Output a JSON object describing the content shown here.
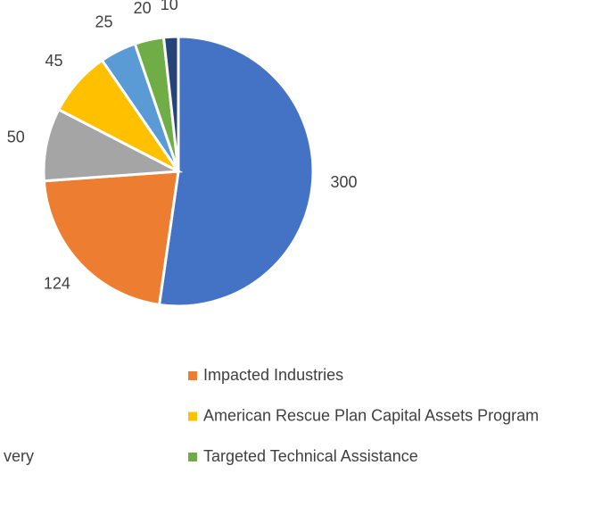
{
  "chart_data": {
    "type": "pie",
    "categories": [
      null,
      "Impacted Industries",
      null,
      "American Rescue Plan Capital Assets Program",
      "very",
      "Targeted Technical Assistance",
      null
    ],
    "values": [
      300,
      124,
      50,
      45,
      25,
      20,
      10
    ],
    "colors": [
      "#4472c4",
      "#ed7d31",
      "#a5a5a5",
      "#ffc000",
      "#5b9bd5",
      "#70ad47",
      "#264478"
    ]
  }
}
